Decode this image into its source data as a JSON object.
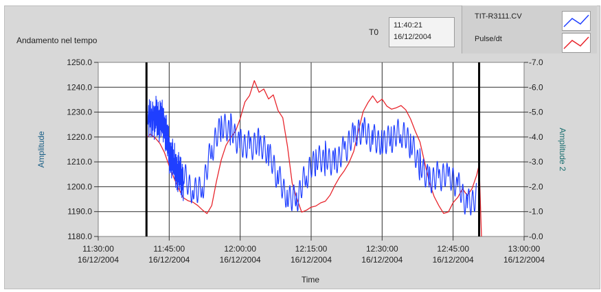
{
  "panel": {
    "title": "Andamento nel tempo",
    "t0_label": "T0",
    "t0_time": "11:40:21",
    "t0_date": "16/12/2004"
  },
  "legend": [
    {
      "name": "TIT-R3111.CV",
      "color": "#1f3fff",
      "icon": "legend-line-blue"
    },
    {
      "name": "Pulse/dt",
      "color": "#e8242b",
      "icon": "legend-line-red"
    }
  ],
  "chart_data": {
    "type": "line",
    "xlabel": "Time",
    "ylabel_left": "Amplitude",
    "ylabel_right": "Amplitude 2",
    "ylim_left": [
      1180.0,
      1250.0
    ],
    "ylim_right": [
      0.0,
      7.0
    ],
    "left_ticks": [
      "1250.0",
      "1240.0",
      "1230.0",
      "1220.0",
      "1210.0",
      "1200.0",
      "1190.0",
      "1180.0"
    ],
    "right_ticks": [
      "7.0",
      "6.0",
      "5.0",
      "4.0",
      "3.0",
      "2.0",
      "1.0",
      "0.0"
    ],
    "x_ticks": [
      {
        "time": "11:30:00",
        "date": "16/12/2004"
      },
      {
        "time": "11:45:00",
        "date": "16/12/2004"
      },
      {
        "time": "12:00:00",
        "date": "16/12/2004"
      },
      {
        "time": "12:15:00",
        "date": "16/12/2004"
      },
      {
        "time": "12:30:00",
        "date": "16/12/2004"
      },
      {
        "time": "12:45:00",
        "date": "16/12/2004"
      },
      {
        "time": "13:00:00",
        "date": "16/12/2004"
      }
    ],
    "x_range_minutes": [
      0,
      90
    ],
    "grid": true,
    "cursor_minutes": [
      10.2,
      80.5
    ],
    "series": [
      {
        "name": "TIT-R3111.CV",
        "axis": "left",
        "color": "#1f3fff",
        "x_minutes": [
          10.5,
          12,
          13,
          14,
          15,
          16,
          17,
          18,
          20,
          22,
          24,
          26,
          28,
          30,
          32,
          34,
          36,
          38,
          40,
          42,
          44,
          46,
          48,
          50,
          52,
          54,
          56,
          58,
          60,
          62,
          64,
          66,
          68,
          70,
          72,
          74,
          76,
          78,
          80
        ],
        "values": [
          1228,
          1228,
          1227,
          1225,
          1214,
          1210,
          1205,
          1203,
          1202,
          1203,
          1214,
          1220,
          1222,
          1221,
          1219,
          1215,
          1209,
          1204,
          1200,
          1198,
          1202,
          1207,
          1212,
          1214,
          1216,
          1217,
          1219,
          1221,
          1222,
          1221,
          1218,
          1215,
          1211,
          1207,
          1204,
          1200,
          1198,
          1196,
          1199
        ]
      },
      {
        "name": "Pulse/dt",
        "axis": "right",
        "color": "#e8242b",
        "x_minutes": [
          10.5,
          11,
          12,
          13,
          14,
          15,
          16,
          17,
          18,
          19,
          20,
          21,
          22,
          23,
          24,
          25,
          26,
          27,
          28,
          29,
          30,
          31,
          32,
          33,
          34,
          35,
          36,
          37,
          38,
          39,
          40,
          41,
          42,
          43,
          44,
          45,
          46,
          47,
          48,
          49,
          50,
          51,
          52,
          53,
          54,
          55,
          56,
          57,
          58,
          59,
          60,
          61,
          62,
          63,
          64,
          65,
          66,
          67,
          68,
          69,
          70,
          71,
          72,
          73,
          74,
          75,
          76,
          77,
          78,
          79,
          80,
          80.5,
          81
        ],
        "values": [
          4.0,
          4.2,
          4.0,
          3.7,
          3.3,
          2.8,
          2.4,
          2.0,
          1.6,
          1.4,
          1.3,
          1.2,
          1.1,
          1.0,
          1.3,
          2.2,
          3.0,
          3.6,
          4.0,
          4.3,
          4.8,
          5.4,
          5.6,
          6.2,
          5.8,
          6.0,
          5.6,
          5.7,
          5.0,
          4.7,
          3.6,
          2.2,
          1.6,
          1.0,
          1.0,
          1.1,
          1.2,
          1.4,
          1.5,
          1.7,
          2.0,
          2.3,
          2.6,
          3.0,
          3.5,
          4.3,
          5.0,
          5.3,
          5.6,
          5.4,
          5.6,
          5.3,
          5.1,
          5.1,
          5.2,
          5.1,
          4.8,
          4.3,
          3.8,
          2.9,
          2.1,
          1.6,
          1.3,
          1.0,
          1.0,
          1.3,
          1.5,
          1.9,
          1.7,
          2.0,
          2.5,
          2.9,
          0.0
        ]
      }
    ]
  }
}
